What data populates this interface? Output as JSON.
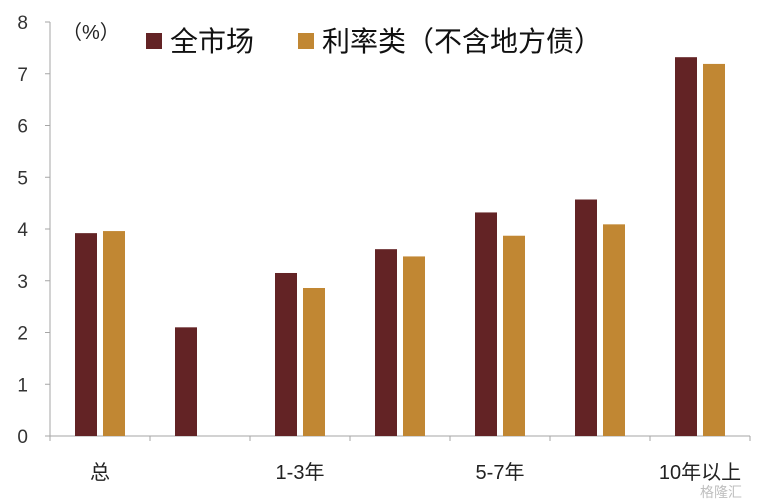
{
  "chart_data": {
    "type": "bar",
    "unit_label": "（%）",
    "categories": [
      "总",
      "",
      "1-3年",
      "",
      "5-7年",
      "",
      "10年以上"
    ],
    "series": [
      {
        "name": "全市场",
        "color": "#632325",
        "values": [
          3.92,
          2.1,
          3.15,
          3.61,
          4.32,
          4.57,
          7.32
        ]
      },
      {
        "name": "利率类（不含地方债）",
        "color": "#C18733",
        "values": [
          3.96,
          null,
          2.86,
          3.47,
          3.87,
          4.09,
          7.19
        ]
      }
    ],
    "ylim": [
      0,
      8
    ],
    "yticks": [
      0,
      1,
      2,
      3,
      4,
      5,
      6,
      7,
      8
    ],
    "grid": false,
    "legend_position": "top-center"
  },
  "watermark": "格隆汇"
}
